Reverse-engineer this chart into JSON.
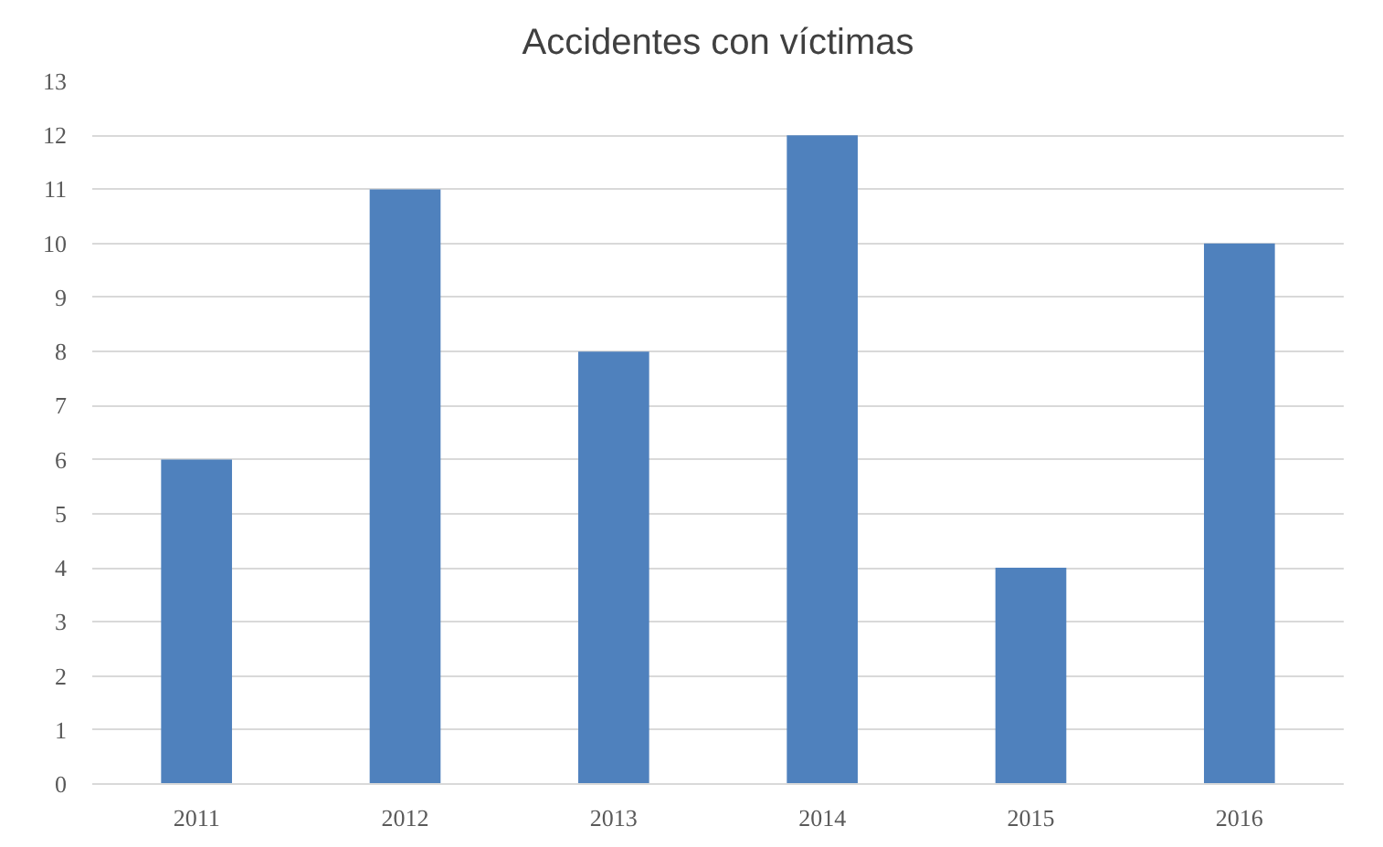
{
  "chart_data": {
    "type": "bar",
    "title": "Accidentes con víctimas",
    "categories": [
      "2011",
      "2012",
      "2013",
      "2014",
      "2015",
      "2016"
    ],
    "values": [
      6,
      11,
      8,
      12,
      4,
      10
    ],
    "color": "#4f81bd",
    "ylim": [
      0,
      13
    ],
    "yticks": [
      0,
      1,
      2,
      3,
      4,
      5,
      6,
      7,
      8,
      9,
      10,
      11,
      12,
      13
    ],
    "grid": "y"
  }
}
